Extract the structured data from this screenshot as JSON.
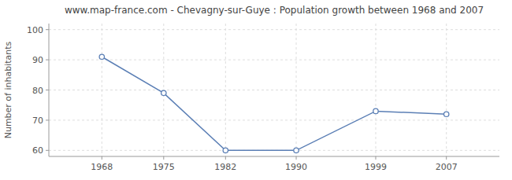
{
  "chart_data": {
    "type": "line",
    "title": "www.map-france.com - Chevagny-sur-Guye : Population growth between 1968 and 2007",
    "y_label": "Number of inhabitants",
    "x": [
      1968,
      1975,
      1982,
      1990,
      1999,
      2007
    ],
    "values": [
      91,
      79,
      60,
      60,
      73,
      72
    ],
    "xlim": [
      1962,
      2013
    ],
    "xticks": [
      1968,
      1975,
      1982,
      1990,
      1999,
      2007
    ],
    "ylim": [
      58,
      102
    ],
    "yticks": [
      60,
      70,
      80,
      90,
      100
    ],
    "color": "#5b7fb5",
    "marker": "circle",
    "grid": true
  }
}
